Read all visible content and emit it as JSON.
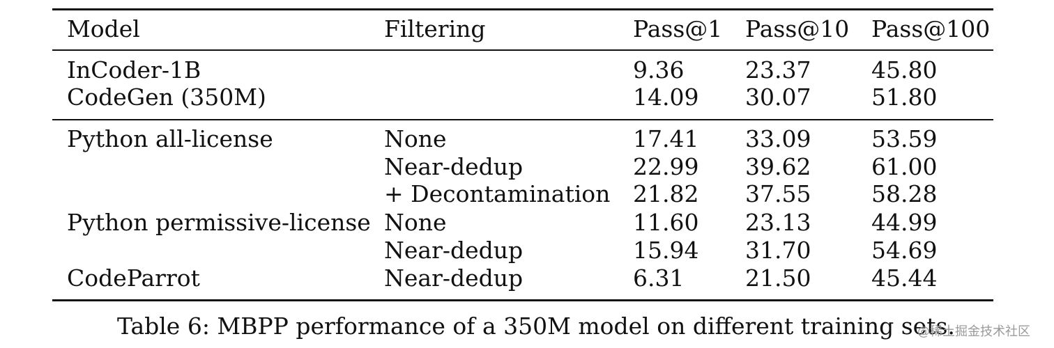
{
  "table": {
    "headers": [
      "Model",
      "Filtering",
      "Pass@1",
      "Pass@10",
      "Pass@100"
    ],
    "groups": [
      {
        "rows": [
          {
            "model": "InCoder-1B",
            "filtering": "",
            "pass1": "9.36",
            "pass10": "23.37",
            "pass100": "45.80"
          },
          {
            "model": "CodeGen (350M)",
            "filtering": "",
            "pass1": "14.09",
            "pass10": "30.07",
            "pass100": "51.80"
          }
        ]
      },
      {
        "rows": [
          {
            "model": "Python all-license",
            "filtering": "None",
            "pass1": "17.41",
            "pass10": "33.09",
            "pass100": "53.59"
          },
          {
            "model": "",
            "filtering": "Near-dedup",
            "pass1": "22.99",
            "pass10": "39.62",
            "pass100": "61.00"
          },
          {
            "model": "",
            "filtering": "+ Decontamination",
            "pass1": "21.82",
            "pass10": "37.55",
            "pass100": "58.28"
          },
          {
            "model": "Python permissive-license",
            "filtering": "None",
            "pass1": "11.60",
            "pass10": "23.13",
            "pass100": "44.99"
          },
          {
            "model": "",
            "filtering": "Near-dedup",
            "pass1": "15.94",
            "pass10": "31.70",
            "pass100": "54.69"
          },
          {
            "model": "CodeParrot",
            "filtering": "Near-dedup",
            "pass1": "6.31",
            "pass10": "21.50",
            "pass100": "45.44"
          }
        ]
      }
    ]
  },
  "caption": "Table 6: MBPP performance of a 350M model on different training sets.",
  "watermark": "@稀土掘金技术社区"
}
